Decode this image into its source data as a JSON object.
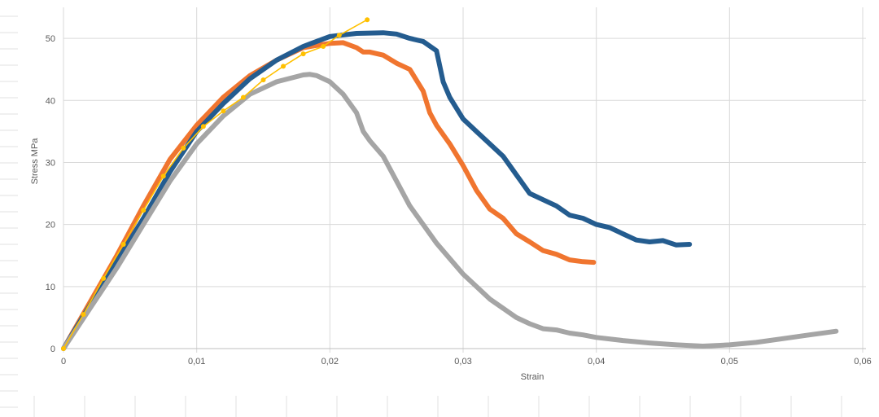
{
  "chart_data": {
    "type": "line",
    "title": "",
    "xlabel": "Strain",
    "ylabel": "Stress MPa",
    "xlim": [
      0,
      0.06
    ],
    "ylim": [
      0,
      55
    ],
    "grid": true,
    "legend": "none",
    "x_tick_labels": [
      "0",
      "0,01",
      "0,02",
      "0,03",
      "0,04",
      "0,05",
      "0,06"
    ],
    "x_tick_values": [
      0,
      0.01,
      0.02,
      0.03,
      0.04,
      0.05,
      0.06
    ],
    "y_tick_labels": [
      "0",
      "10",
      "20",
      "30",
      "40",
      "50"
    ],
    "y_tick_values": [
      0,
      10,
      20,
      30,
      40,
      50
    ],
    "series": [
      {
        "color": "#F0752F",
        "style": "thick",
        "x": [
          0,
          0.002,
          0.004,
          0.006,
          0.008,
          0.01,
          0.012,
          0.014,
          0.016,
          0.018,
          0.02,
          0.021,
          0.022,
          0.0225,
          0.023,
          0.024,
          0.025,
          0.026,
          0.027,
          0.0275,
          0.028,
          0.029,
          0.03,
          0.031,
          0.032,
          0.033,
          0.034,
          0.035,
          0.036,
          0.037,
          0.038,
          0.039,
          0.0398
        ],
        "y": [
          0,
          7.5,
          15,
          23,
          30.5,
          36,
          40.5,
          44,
          46.5,
          48.5,
          49.2,
          49.3,
          48.5,
          47.8,
          47.8,
          47.3,
          46,
          45,
          41.5,
          38,
          36,
          33,
          29.5,
          25.5,
          22.5,
          21,
          18.5,
          17.2,
          15.8,
          15.2,
          14.3,
          14,
          13.9
        ]
      },
      {
        "color": "#245C8F",
        "style": "thick",
        "x": [
          0,
          0.002,
          0.004,
          0.006,
          0.008,
          0.01,
          0.012,
          0.014,
          0.016,
          0.018,
          0.02,
          0.022,
          0.024,
          0.025,
          0.026,
          0.027,
          0.028,
          0.0285,
          0.029,
          0.03,
          0.031,
          0.032,
          0.033,
          0.034,
          0.035,
          0.036,
          0.037,
          0.038,
          0.039,
          0.04,
          0.041,
          0.042,
          0.043,
          0.044,
          0.045,
          0.046,
          0.047
        ],
        "y": [
          0,
          7,
          14,
          21,
          28.5,
          35,
          39.5,
          43.5,
          46.5,
          48.7,
          50.3,
          50.8,
          50.9,
          50.7,
          50,
          49.5,
          48,
          43,
          40.5,
          37,
          35,
          33,
          31,
          28,
          25,
          24,
          23,
          21.5,
          21,
          20,
          19.5,
          18.5,
          17.5,
          17.2,
          17.4,
          16.7,
          16.8
        ]
      },
      {
        "color": "#A5A5A5",
        "style": "thick",
        "x": [
          0,
          0.002,
          0.004,
          0.006,
          0.008,
          0.01,
          0.012,
          0.014,
          0.016,
          0.018,
          0.0185,
          0.019,
          0.02,
          0.021,
          0.022,
          0.0225,
          0.023,
          0.024,
          0.025,
          0.026,
          0.027,
          0.028,
          0.029,
          0.03,
          0.031,
          0.032,
          0.033,
          0.034,
          0.035,
          0.036,
          0.037,
          0.038,
          0.039,
          0.04,
          0.042,
          0.044,
          0.046,
          0.048,
          0.05,
          0.052,
          0.054,
          0.056,
          0.058
        ],
        "y": [
          0,
          6.5,
          13,
          20,
          27,
          33,
          37.5,
          41,
          43,
          44.1,
          44.2,
          44,
          43,
          41,
          38,
          35,
          33.5,
          31,
          27,
          23,
          20,
          17,
          14.5,
          12,
          10,
          8,
          6.5,
          5,
          4,
          3.2,
          3,
          2.5,
          2.2,
          1.8,
          1.3,
          0.9,
          0.6,
          0.4,
          0.6,
          1,
          1.6,
          2.2,
          2.8
        ]
      },
      {
        "color": "#FFC000",
        "style": "thin-markers",
        "x": [
          0,
          0.0015,
          0.003,
          0.0045,
          0.006,
          0.0075,
          0.009,
          0.0105,
          0.012,
          0.0135,
          0.015,
          0.0165,
          0.018,
          0.0195,
          0.0207,
          0.0228
        ],
        "y": [
          0,
          5.5,
          11.3,
          16.8,
          22.3,
          27.8,
          32.3,
          35.8,
          38.3,
          40.5,
          43.3,
          45.5,
          47.5,
          48.7,
          50.5,
          53
        ]
      }
    ]
  }
}
